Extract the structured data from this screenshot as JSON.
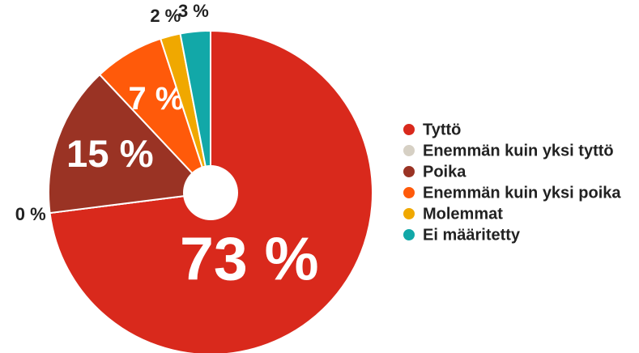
{
  "chart_data": {
    "type": "pie",
    "categories": [
      "Tyttö",
      "Enemmän kuin yksi tyttö",
      "Poika",
      "Enemmän kuin yksi poika",
      "Molemmat",
      "Ei määritetty"
    ],
    "values": [
      73,
      0,
      15,
      7,
      2,
      3
    ],
    "value_labels": [
      "73 %",
      "0 %",
      "15 %",
      "7 %",
      "2 %",
      "3 %"
    ],
    "colors": [
      "#d9291c",
      "#d6d0c4",
      "#9a3324",
      "#ff5a0a",
      "#f0a800",
      "#12a8a8"
    ],
    "legend": "right"
  }
}
